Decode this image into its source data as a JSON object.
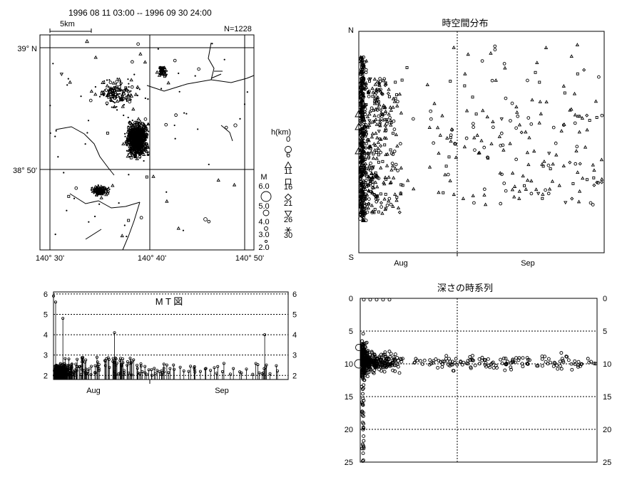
{
  "header": {
    "date_range": "1996 08 11 03:00  --  1996 09 30 24:00",
    "count": "N=1228",
    "scale": "5km"
  },
  "map": {
    "lat_labels": [
      "39° N",
      "38° 50'"
    ],
    "lon_labels": [
      "140° 30'",
      "140° 40'",
      "140° 50'"
    ]
  },
  "legend": {
    "depth_title": "h(km)",
    "depth_values": [
      "0",
      "6",
      "11",
      "16",
      "21",
      "26",
      "30"
    ],
    "mag_title": "M",
    "mag_values": [
      "6.0",
      "5.0",
      "4.0",
      "3.0",
      "2.0"
    ]
  },
  "chart_data": [
    {
      "type": "scatter",
      "title": "時空間分布",
      "y_top_label": "N",
      "y_bottom_label": "S",
      "x_tick_labels": [
        "Aug",
        "Sep"
      ],
      "x_range": [
        "1996-08-11",
        "1996-09-30"
      ],
      "grid": "dotted vertical at Sep 1",
      "series": [
        {
          "points": "dense clustering Aug 11–20, sparse afterwards"
        }
      ]
    },
    {
      "type": "bar",
      "title": "M T 図",
      "y_tick_labels": [
        "2",
        "3",
        "4",
        "5",
        "6"
      ],
      "ylim": [
        1.8,
        6.1
      ],
      "x_tick_labels": [
        "Aug",
        "Sep"
      ],
      "x_range": [
        "1996-08-11",
        "1996-09-30"
      ],
      "notable_events": [
        {
          "date": "1996-08-11",
          "magnitude": 5.9
        },
        {
          "date": "1996-08-11",
          "magnitude": 5.6
        },
        {
          "date": "1996-08-13",
          "magnitude": 4.8
        },
        {
          "date": "1996-08-24",
          "magnitude": 4.1
        },
        {
          "date": "1996-09-25",
          "magnitude": 4.0
        }
      ]
    },
    {
      "type": "scatter",
      "title": "深さの時系列",
      "y_tick_labels": [
        "0",
        "5",
        "10",
        "15",
        "20",
        "25"
      ],
      "ylim": [
        25,
        0
      ],
      "ylabel": "",
      "x_range": [
        "1996-08-11",
        "1996-09-30"
      ],
      "grid": "dotted horizontal at 5, 10, 15, 20; dotted vertical at Sep 1",
      "series": [
        {
          "points": "depths mostly 7–12 km, concentrated early Aug"
        }
      ]
    }
  ]
}
